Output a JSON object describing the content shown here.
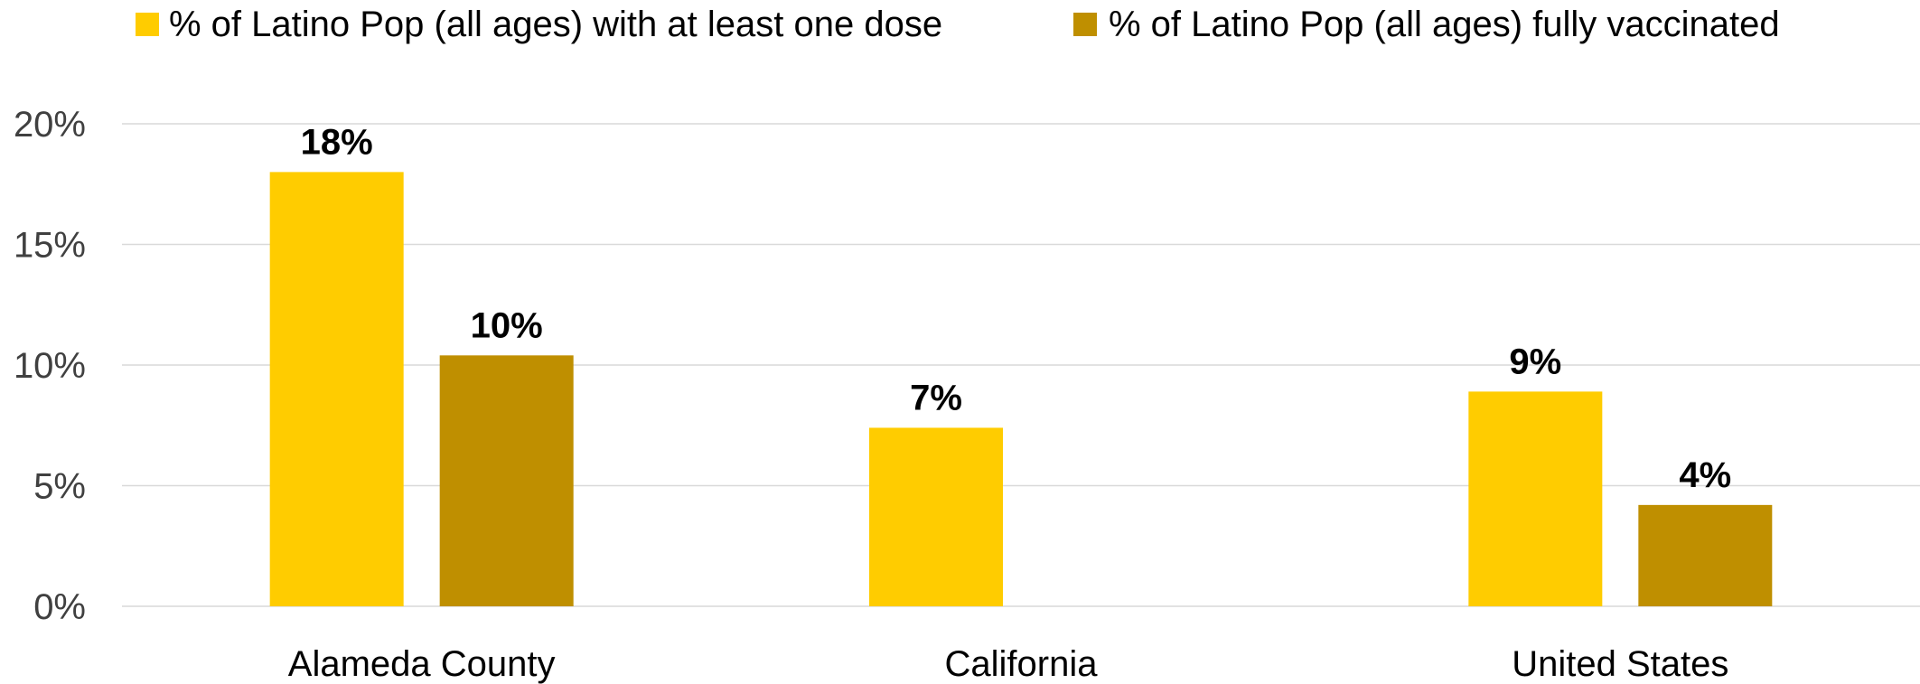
{
  "chart_data": {
    "type": "bar",
    "categories": [
      "Alameda County",
      "California",
      "United States"
    ],
    "series": [
      {
        "name": "% of Latino Pop (all ages) with at least one dose",
        "color": "#FFCC00",
        "values": [
          18,
          7.4,
          8.9
        ],
        "labels": [
          "18%",
          "7%",
          "9%"
        ]
      },
      {
        "name": "% of Latino Pop (all ages) fully vaccinated",
        "color": "#BF8F00",
        "values": [
          10.4,
          null,
          4.2
        ],
        "labels": [
          "10%",
          "",
          "4%"
        ]
      }
    ],
    "ylim": [
      0,
      20
    ],
    "yticks": [
      0,
      5,
      10,
      15,
      20
    ],
    "ytick_labels": [
      "0%",
      "5%",
      "10%",
      "15%",
      "20%"
    ],
    "grid": true,
    "legend_position": "top"
  }
}
